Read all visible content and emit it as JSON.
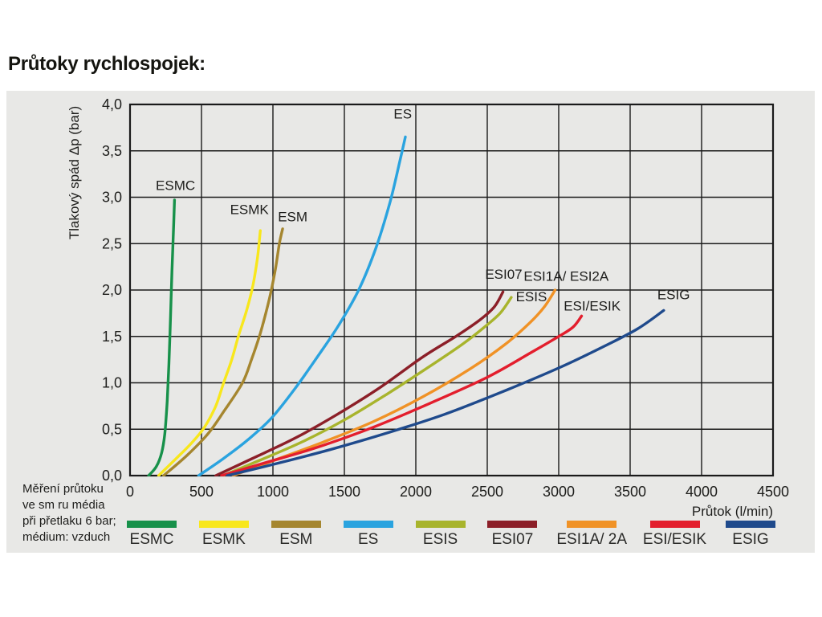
{
  "page": {
    "title": "Průtoky rychlospojek:"
  },
  "panel": {
    "background": "#e8e8e6",
    "note_lines": [
      "Měření průtoku",
      "ve sm ru média",
      "při přetlaku 6 bar;",
      "médium: vzduch"
    ]
  },
  "chart_data": {
    "type": "line",
    "title": "Průtoky rychlospojek:",
    "xlabel": "Průtok (l/min)",
    "ylabel": "Tlakový spád Δp (bar)",
    "xlim": [
      0,
      4500
    ],
    "ylim": [
      0,
      4.0
    ],
    "grid": true,
    "grid_color": "#1a1a1a",
    "x_ticks": {
      "values": [
        0,
        500,
        1000,
        1500,
        2000,
        2500,
        3000,
        3500,
        4000,
        4500
      ],
      "labels": [
        "0",
        "500",
        "1000",
        "1500",
        "2000",
        "2500",
        "3000",
        "3500",
        "4000",
        "4500"
      ]
    },
    "y_ticks": {
      "values": [
        0,
        0.5,
        1,
        1.5,
        2,
        2.5,
        3,
        3.5,
        4
      ],
      "labels": [
        "0,0",
        "0,5",
        "1,0",
        "1,5",
        "2,0",
        "2,5",
        "3,0",
        "3,5",
        "4,0"
      ]
    },
    "series": [
      {
        "name": "ESMC",
        "label": "ESMC",
        "color": "#17914a",
        "label_pos": {
          "q": 180,
          "p": 3.08
        },
        "points": [
          [
            130,
            0
          ],
          [
            185,
            0.1
          ],
          [
            222,
            0.25
          ],
          [
            243,
            0.45
          ],
          [
            260,
            0.8
          ],
          [
            272,
            1.2
          ],
          [
            283,
            1.7
          ],
          [
            293,
            2.2
          ],
          [
            303,
            2.6
          ],
          [
            311,
            2.97
          ]
        ]
      },
      {
        "name": "ESMK",
        "label": "ESMK",
        "color": "#f8e71c",
        "label_pos": {
          "q": 700,
          "p": 2.82
        },
        "points": [
          [
            200,
            0
          ],
          [
            320,
            0.18
          ],
          [
            430,
            0.35
          ],
          [
            520,
            0.52
          ],
          [
            600,
            0.75
          ],
          [
            655,
            1.0
          ],
          [
            712,
            1.25
          ],
          [
            758,
            1.5
          ],
          [
            816,
            1.78
          ],
          [
            860,
            2.05
          ],
          [
            892,
            2.35
          ],
          [
            912,
            2.64
          ]
        ]
      },
      {
        "name": "ESM",
        "label": "ESM",
        "color": "#a5862f",
        "label_pos": {
          "q": 1035,
          "p": 2.74
        },
        "points": [
          [
            235,
            0
          ],
          [
            400,
            0.22
          ],
          [
            545,
            0.45
          ],
          [
            660,
            0.7
          ],
          [
            787,
            1.0
          ],
          [
            850,
            1.25
          ],
          [
            905,
            1.5
          ],
          [
            950,
            1.75
          ],
          [
            989,
            2.0
          ],
          [
            1020,
            2.25
          ],
          [
            1045,
            2.5
          ],
          [
            1068,
            2.66
          ]
        ]
      },
      {
        "name": "ES",
        "label": "ES",
        "color": "#2aa3df",
        "label_pos": {
          "q": 1845,
          "p": 3.85
        },
        "points": [
          [
            480,
            0
          ],
          [
            650,
            0.18
          ],
          [
            820,
            0.38
          ],
          [
            990,
            0.62
          ],
          [
            1160,
            0.95
          ],
          [
            1320,
            1.3
          ],
          [
            1460,
            1.62
          ],
          [
            1600,
            2.0
          ],
          [
            1720,
            2.45
          ],
          [
            1820,
            2.95
          ],
          [
            1890,
            3.4
          ],
          [
            1927,
            3.65
          ]
        ]
      },
      {
        "name": "ESIS",
        "label": "ESIS",
        "color": "#a8b42c",
        "label_pos": {
          "q": 2700,
          "p": 1.88
        },
        "points": [
          [
            650,
            0
          ],
          [
            900,
            0.16
          ],
          [
            1200,
            0.36
          ],
          [
            1500,
            0.6
          ],
          [
            1800,
            0.88
          ],
          [
            2100,
            1.18
          ],
          [
            2330,
            1.42
          ],
          [
            2480,
            1.6
          ],
          [
            2590,
            1.75
          ],
          [
            2668,
            1.92
          ]
        ]
      },
      {
        "name": "ESI07",
        "label": "ESI07",
        "color": "#8c1f28",
        "label_pos": {
          "q": 2485,
          "p": 2.12
        },
        "points": [
          [
            600,
            0
          ],
          [
            850,
            0.18
          ],
          [
            1150,
            0.4
          ],
          [
            1450,
            0.66
          ],
          [
            1750,
            0.95
          ],
          [
            2050,
            1.28
          ],
          [
            2280,
            1.5
          ],
          [
            2450,
            1.68
          ],
          [
            2550,
            1.82
          ],
          [
            2610,
            1.98
          ]
        ]
      },
      {
        "name": "ESI1A-2A",
        "label": "ESI1A/ ESI2A",
        "color": "#f09226",
        "label_pos": {
          "q": 2755,
          "p": 2.1
        },
        "points": [
          [
            720,
            0
          ],
          [
            1000,
            0.16
          ],
          [
            1350,
            0.36
          ],
          [
            1700,
            0.58
          ],
          [
            2050,
            0.85
          ],
          [
            2380,
            1.15
          ],
          [
            2630,
            1.42
          ],
          [
            2800,
            1.65
          ],
          [
            2900,
            1.82
          ],
          [
            2975,
            2.0
          ]
        ]
      },
      {
        "name": "ESI-ESIK",
        "label": "ESI/ESIK",
        "color": "#e31e2d",
        "label_pos": {
          "q": 3035,
          "p": 1.78
        },
        "points": [
          [
            640,
            0
          ],
          [
            950,
            0.14
          ],
          [
            1300,
            0.3
          ],
          [
            1700,
            0.52
          ],
          [
            2100,
            0.78
          ],
          [
            2500,
            1.06
          ],
          [
            2800,
            1.32
          ],
          [
            3000,
            1.5
          ],
          [
            3100,
            1.6
          ],
          [
            3160,
            1.72
          ]
        ]
      },
      {
        "name": "ESIG",
        "label": "ESIG",
        "color": "#1f4a8c",
        "label_pos": {
          "q": 3690,
          "p": 1.9
        },
        "points": [
          [
            680,
            0
          ],
          [
            1000,
            0.12
          ],
          [
            1400,
            0.28
          ],
          [
            1800,
            0.46
          ],
          [
            2200,
            0.66
          ],
          [
            2600,
            0.9
          ],
          [
            3000,
            1.16
          ],
          [
            3300,
            1.38
          ],
          [
            3550,
            1.58
          ],
          [
            3735,
            1.78
          ]
        ]
      }
    ],
    "legend_position": "bottom"
  },
  "legend": {
    "items": [
      {
        "label": "ESMC",
        "color": "#17914a"
      },
      {
        "label": "ESMK",
        "color": "#f8e71c"
      },
      {
        "label": "ESM",
        "color": "#a5862f"
      },
      {
        "label": "ES",
        "color": "#2aa3df"
      },
      {
        "label": "ESIS",
        "color": "#a8b42c"
      },
      {
        "label": "ESI07",
        "color": "#8c1f28"
      },
      {
        "label": "ESI1A/ 2A",
        "color": "#f09226"
      },
      {
        "label": "ESI/ESIK",
        "color": "#e31e2d"
      },
      {
        "label": "ESIG",
        "color": "#1f4a8c"
      }
    ]
  }
}
